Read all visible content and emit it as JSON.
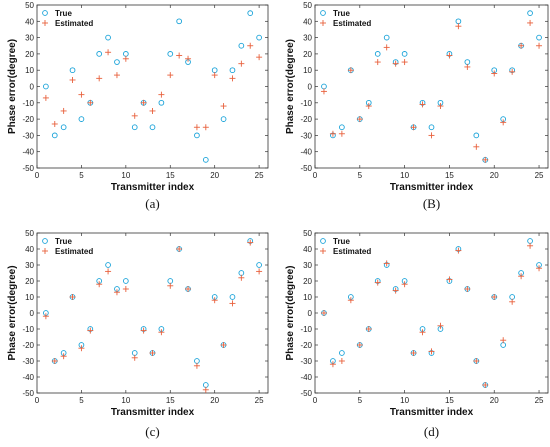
{
  "chart_data": [
    {
      "type": "scatter",
      "panel_label": "(a)",
      "xlabel": "Transmitter index",
      "ylabel": "Phase error(degree)",
      "xlim": [
        0,
        26
      ],
      "ylim": [
        -50,
        50
      ],
      "xticks": [
        0,
        5,
        10,
        15,
        20,
        25
      ],
      "yticks": [
        -50,
        -40,
        -30,
        -20,
        -10,
        0,
        10,
        20,
        30,
        40,
        50
      ],
      "legend_position": "top-left",
      "series": [
        {
          "name": "True",
          "marker": "circle",
          "color": "#1aa3d9",
          "x": [
            1,
            2,
            3,
            4,
            5,
            6,
            7,
            8,
            9,
            10,
            11,
            12,
            13,
            14,
            15,
            16,
            17,
            18,
            19,
            20,
            21,
            22,
            23,
            24,
            25
          ],
          "y": [
            0,
            -30,
            -25,
            10,
            -20,
            -10,
            20,
            30,
            15,
            20,
            -25,
            -10,
            -25,
            -10,
            20,
            40,
            15,
            -30,
            -45,
            10,
            -20,
            10,
            25,
            45,
            30
          ]
        },
        {
          "name": "Estimated",
          "marker": "plus",
          "color": "#e8603c",
          "x": [
            1,
            2,
            3,
            4,
            5,
            6,
            7,
            8,
            9,
            10,
            11,
            12,
            13,
            14,
            15,
            16,
            17,
            18,
            19,
            20,
            21,
            22,
            23,
            24,
            25
          ],
          "y": [
            -7,
            -23,
            -15,
            4,
            -5,
            -10,
            5,
            21,
            7,
            17,
            -18,
            -10,
            -15,
            -5,
            7,
            19,
            17,
            -25,
            -25,
            7,
            -12,
            5,
            14,
            25,
            18
          ]
        }
      ]
    },
    {
      "type": "scatter",
      "panel_label": "(B)",
      "xlabel": "Transmitter index",
      "ylabel": "Phase error(degree)",
      "xlim": [
        0,
        26
      ],
      "ylim": [
        -50,
        50
      ],
      "xticks": [
        0,
        5,
        10,
        15,
        20,
        25
      ],
      "yticks": [
        -50,
        -40,
        -30,
        -20,
        -10,
        0,
        10,
        20,
        30,
        40,
        50
      ],
      "legend_position": "top-left",
      "series": [
        {
          "name": "True",
          "marker": "circle",
          "color": "#1aa3d9",
          "x": [
            1,
            2,
            3,
            4,
            5,
            6,
            7,
            8,
            9,
            10,
            11,
            12,
            13,
            14,
            15,
            16,
            17,
            18,
            19,
            20,
            21,
            22,
            23,
            24,
            25
          ],
          "y": [
            0,
            -30,
            -25,
            10,
            -20,
            -10,
            20,
            30,
            15,
            20,
            -25,
            -10,
            -25,
            -10,
            20,
            40,
            15,
            -30,
            -45,
            10,
            -20,
            10,
            25,
            45,
            30
          ]
        },
        {
          "name": "Estimated",
          "marker": "plus",
          "color": "#e8603c",
          "x": [
            1,
            2,
            3,
            4,
            5,
            6,
            7,
            8,
            9,
            10,
            11,
            12,
            13,
            14,
            15,
            16,
            17,
            18,
            19,
            20,
            21,
            22,
            23,
            24,
            25
          ],
          "y": [
            -3,
            -29,
            -29,
            10,
            -20,
            -12,
            15,
            24,
            14,
            15,
            -25,
            -11,
            -30,
            -12,
            19,
            37,
            12,
            -37,
            -45,
            8,
            -22,
            9,
            25,
            39,
            25
          ]
        }
      ]
    },
    {
      "type": "scatter",
      "panel_label": "(c)",
      "xlabel": "Transmitter  index",
      "ylabel": "Phase error(degree)",
      "xlim": [
        0,
        26
      ],
      "ylim": [
        -50,
        50
      ],
      "xticks": [
        0,
        5,
        10,
        15,
        20,
        25
      ],
      "yticks": [
        -50,
        -40,
        -30,
        -20,
        -10,
        0,
        10,
        20,
        30,
        40,
        50
      ],
      "legend_position": "top-left",
      "series": [
        {
          "name": "True",
          "marker": "circle",
          "color": "#1aa3d9",
          "x": [
            1,
            2,
            3,
            4,
            5,
            6,
            7,
            8,
            9,
            10,
            11,
            12,
            13,
            14,
            15,
            16,
            17,
            18,
            19,
            20,
            21,
            22,
            23,
            24,
            25
          ],
          "y": [
            0,
            -30,
            -25,
            10,
            -20,
            -10,
            20,
            30,
            15,
            20,
            -25,
            -10,
            -25,
            -10,
            20,
            40,
            15,
            -30,
            -45,
            10,
            -20,
            10,
            25,
            45,
            30
          ]
        },
        {
          "name": "Estimated",
          "marker": "plus",
          "color": "#e8603c",
          "x": [
            1,
            2,
            3,
            4,
            5,
            6,
            7,
            8,
            9,
            10,
            11,
            12,
            13,
            14,
            15,
            16,
            17,
            18,
            19,
            20,
            21,
            22,
            23,
            24,
            25
          ],
          "y": [
            -2,
            -30,
            -27,
            10,
            -22,
            -11,
            18,
            26,
            13,
            15,
            -28,
            -11,
            -25,
            -12,
            17,
            40,
            15,
            -33,
            -48,
            8,
            -20,
            6,
            22,
            44,
            26
          ]
        }
      ]
    },
    {
      "type": "scatter",
      "panel_label": "(d)",
      "xlabel": "Transmitter index",
      "ylabel": "Phase error(degree)",
      "xlim": [
        0,
        26
      ],
      "ylim": [
        -50,
        50
      ],
      "xticks": [
        0,
        5,
        10,
        15,
        20,
        25
      ],
      "yticks": [
        -50,
        -40,
        -30,
        -20,
        -10,
        0,
        10,
        20,
        30,
        40,
        50
      ],
      "legend_position": "top-left",
      "series": [
        {
          "name": "True",
          "marker": "circle",
          "color": "#1aa3d9",
          "x": [
            1,
            2,
            3,
            4,
            5,
            6,
            7,
            8,
            9,
            10,
            11,
            12,
            13,
            14,
            15,
            16,
            17,
            18,
            19,
            20,
            21,
            22,
            23,
            24,
            25
          ],
          "y": [
            0,
            -30,
            -25,
            10,
            -20,
            -10,
            20,
            30,
            15,
            20,
            -25,
            -10,
            -25,
            -10,
            20,
            40,
            15,
            -30,
            -45,
            10,
            -20,
            10,
            25,
            45,
            30
          ]
        },
        {
          "name": "Estimated",
          "marker": "plus",
          "color": "#e8603c",
          "x": [
            1,
            2,
            3,
            4,
            5,
            6,
            7,
            8,
            9,
            10,
            11,
            12,
            13,
            14,
            15,
            16,
            17,
            18,
            19,
            20,
            21,
            22,
            23,
            24,
            25
          ],
          "y": [
            0,
            -32,
            -30,
            8,
            -20,
            -10,
            19,
            31,
            14,
            18,
            -25,
            -12,
            -24,
            -8,
            21,
            39,
            15,
            -30,
            -45,
            10,
            -17,
            7,
            23,
            42,
            28
          ]
        }
      ]
    }
  ]
}
